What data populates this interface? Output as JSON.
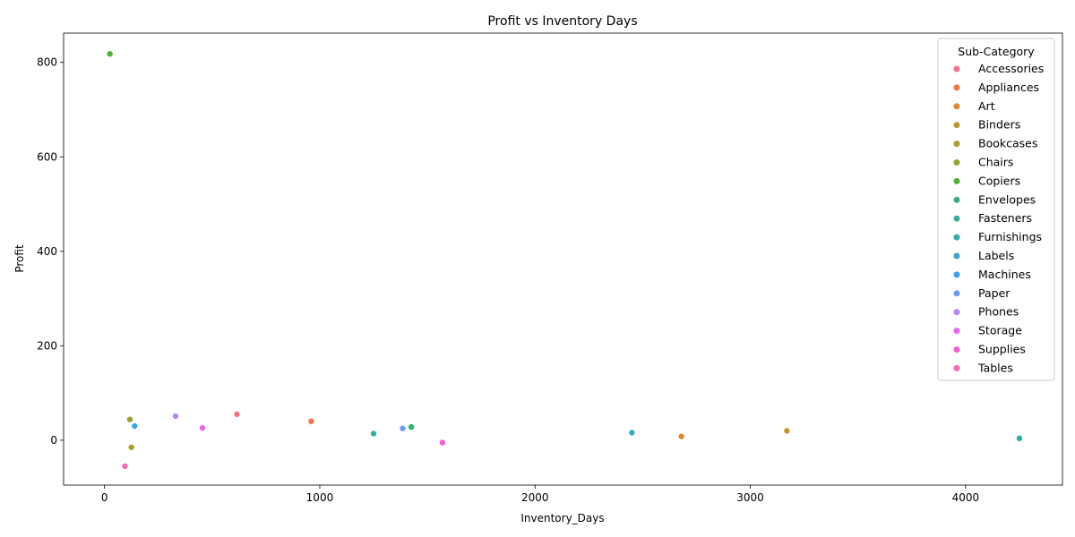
{
  "chart_data": {
    "type": "scatter",
    "title": "Profit vs Inventory Days",
    "xlabel": "Inventory_Days",
    "ylabel": "Profit",
    "xlim": [
      -190,
      4450
    ],
    "ylim": [
      -95,
      862
    ],
    "xticks": [
      0,
      1000,
      2000,
      3000,
      4000
    ],
    "yticks": [
      0,
      200,
      400,
      600,
      800
    ],
    "grid": false,
    "legend": {
      "title": "Sub-Category",
      "placement": "top-right"
    },
    "series": [
      {
        "name": "Accessories",
        "color": "#f77189",
        "points": [
          [
            615,
            55
          ]
        ]
      },
      {
        "name": "Appliances",
        "color": "#f7754f",
        "points": [
          [
            960,
            40
          ]
        ]
      },
      {
        "name": "Art",
        "color": "#dc8932",
        "points": [
          [
            2680,
            8
          ]
        ]
      },
      {
        "name": "Binders",
        "color": "#c39532",
        "points": [
          [
            3170,
            20
          ]
        ]
      },
      {
        "name": "Bookcases",
        "color": "#ae9d31",
        "points": [
          [
            125,
            -15
          ]
        ]
      },
      {
        "name": "Chairs",
        "color": "#97a431",
        "points": [
          [
            118,
            44
          ]
        ]
      },
      {
        "name": "Copiers",
        "color": "#50b131",
        "points": [
          [
            25,
            818
          ]
        ]
      },
      {
        "name": "Envelopes",
        "color": "#33b07a",
        "points": [
          [
            1425,
            28
          ]
        ]
      },
      {
        "name": "Fasteners",
        "color": "#35ad9c",
        "points": [
          [
            4250,
            4
          ]
        ]
      },
      {
        "name": "Furnishings",
        "color": "#36ada4",
        "points": [
          [
            1250,
            14
          ]
        ]
      },
      {
        "name": "Labels",
        "color": "#38a9c5",
        "points": [
          [
            2450,
            16
          ]
        ]
      },
      {
        "name": "Machines",
        "color": "#3ba3ec",
        "points": [
          [
            140,
            30
          ]
        ]
      },
      {
        "name": "Paper",
        "color": "#6e9af4",
        "points": [
          [
            1385,
            25
          ]
        ]
      },
      {
        "name": "Phones",
        "color": "#bb83f4",
        "points": [
          [
            330,
            51
          ]
        ]
      },
      {
        "name": "Storage",
        "color": "#e866f4",
        "points": [
          [
            455,
            26
          ]
        ]
      },
      {
        "name": "Supplies",
        "color": "#f45fcc",
        "points": [
          [
            1570,
            -5
          ]
        ]
      },
      {
        "name": "Tables",
        "color": "#f66bad",
        "points": [
          [
            95,
            -55
          ]
        ]
      }
    ]
  }
}
